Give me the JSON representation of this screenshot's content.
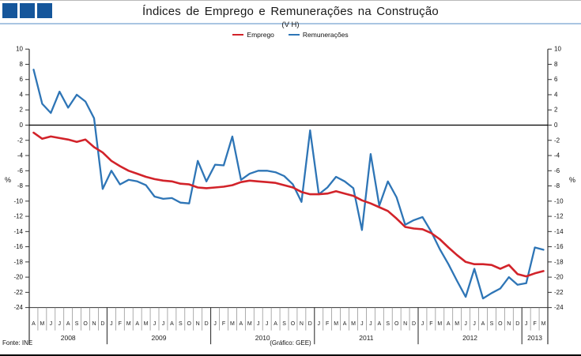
{
  "header": {
    "accent_color": "#15569b",
    "rule_color": "#a9c5e2"
  },
  "title": "Índices de Emprego e Remunerações na Construção",
  "subtitle": "(V H)",
  "legend": {
    "items": [
      {
        "label": "Emprego",
        "color": "#d2232a"
      },
      {
        "label": "Remunerações",
        "color": "#2e75b6"
      }
    ]
  },
  "chart_data": {
    "type": "line",
    "title": "Índices de Emprego e Remunerações na Construção",
    "subtitle": "(V H)",
    "ylabel_left": "%",
    "ylabel_right": "%",
    "ylim": [
      -24,
      10
    ],
    "ytick_step": 2,
    "grid": "zero-line-only",
    "legend_position": "top-center",
    "x_month_labels": [
      "A",
      "M",
      "J",
      "J",
      "A",
      "S",
      "O",
      "N",
      "D",
      "J",
      "F",
      "M",
      "A",
      "M",
      "J",
      "J",
      "A",
      "S",
      "O",
      "N",
      "D",
      "J",
      "F",
      "M",
      "A",
      "M",
      "J",
      "J",
      "A",
      "S",
      "O",
      "N",
      "D",
      "J",
      "F",
      "M",
      "A",
      "M",
      "J",
      "J",
      "A",
      "S",
      "O",
      "N",
      "D",
      "J",
      "F",
      "M",
      "A",
      "M",
      "J",
      "J",
      "A",
      "S",
      "O",
      "N",
      "D",
      "J",
      "F",
      "M"
    ],
    "year_groups": [
      {
        "label": "2008",
        "span": 9
      },
      {
        "label": "2009",
        "span": 12
      },
      {
        "label": "2010",
        "span": 12
      },
      {
        "label": "2011",
        "span": 12
      },
      {
        "label": "2012",
        "span": 12
      },
      {
        "label": "2013",
        "span": 3
      }
    ],
    "series": [
      {
        "name": "Emprego",
        "color": "#d2232a",
        "values": [
          -1.0,
          -1.8,
          -1.5,
          -1.7,
          -1.9,
          -2.2,
          -1.9,
          -2.9,
          -3.6,
          -4.7,
          -5.4,
          -6.0,
          -6.4,
          -6.8,
          -7.1,
          -7.3,
          -7.4,
          -7.7,
          -7.8,
          -8.2,
          -8.3,
          -8.2,
          -8.1,
          -7.9,
          -7.5,
          -7.3,
          -7.4,
          -7.5,
          -7.6,
          -7.9,
          -8.2,
          -8.8,
          -9.1,
          -9.1,
          -9.0,
          -8.7,
          -9.0,
          -9.3,
          -9.9,
          -10.3,
          -10.8,
          -11.3,
          -12.3,
          -13.4,
          -13.6,
          -13.7,
          -14.2,
          -15.0,
          -16.1,
          -17.1,
          -18.0,
          -18.3,
          -18.3,
          -18.4,
          -18.9,
          -18.4,
          -19.6,
          -19.9,
          -19.5,
          -19.2
        ]
      },
      {
        "name": "Remunerações",
        "color": "#2e75b6",
        "values": [
          7.3,
          2.8,
          1.6,
          4.4,
          2.3,
          4.0,
          3.1,
          0.9,
          -8.4,
          -6.0,
          -7.8,
          -7.2,
          -7.4,
          -7.9,
          -9.4,
          -9.7,
          -9.6,
          -10.2,
          -10.3,
          -4.7,
          -7.4,
          -5.2,
          -5.3,
          -1.5,
          -7.2,
          -6.4,
          -6.0,
          -6.0,
          -6.2,
          -6.7,
          -7.8,
          -10.1,
          -0.7,
          -9.1,
          -8.2,
          -6.8,
          -7.4,
          -8.3,
          -13.8,
          -3.8,
          -10.6,
          -7.4,
          -9.5,
          -13.1,
          -12.5,
          -12.1,
          -14.0,
          -16.3,
          -18.3,
          -20.5,
          -22.6,
          -18.9,
          -22.8,
          -22.1,
          -21.5,
          -20.0,
          -21.0,
          -20.8,
          -16.1,
          -16.4
        ]
      }
    ]
  },
  "footer": {
    "source": "Fonte: INE",
    "credit": "(Gráfico: GEE)"
  }
}
